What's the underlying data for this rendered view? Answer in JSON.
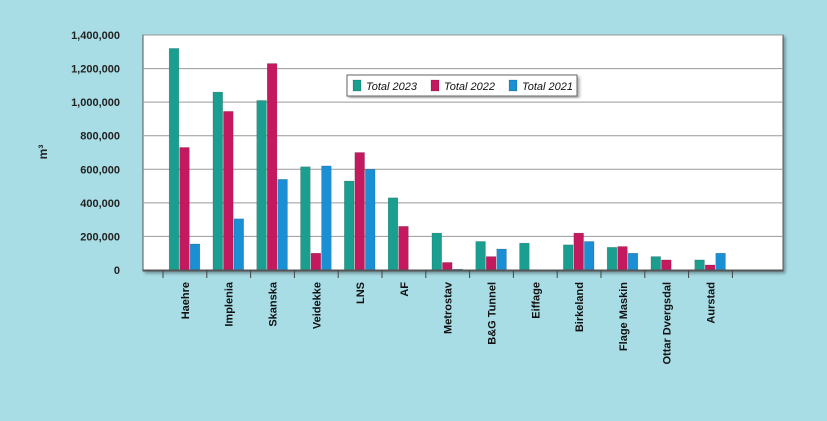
{
  "chart_data": {
    "type": "bar",
    "title": "",
    "xlabel": "",
    "ylabel": "m³",
    "ylim": [
      0,
      1400000
    ],
    "yticks": [
      0,
      200000,
      400000,
      600000,
      800000,
      1000000,
      1200000,
      1400000
    ],
    "ytick_labels": [
      "0",
      "200,000",
      "400,000",
      "600,000",
      "800,000",
      "1,000,000",
      "1,200,000",
      "1,400,000"
    ],
    "grid": true,
    "legend_position": "top-center",
    "categories": [
      "Haehre",
      "Implenia",
      "Skanska",
      "Veidekke",
      "LNS",
      "AF",
      "Metrostav",
      "B&G Tunnel",
      "Eiffage",
      "Birkeland",
      "Flage Maskin",
      "Ottar Dvergsdal",
      "Aurstad"
    ],
    "series": [
      {
        "name": "Total 2023",
        "color": "#1a9e8f",
        "values": [
          1320000,
          1060000,
          1010000,
          615000,
          530000,
          430000,
          220000,
          170000,
          160000,
          150000,
          135000,
          80000,
          60000
        ]
      },
      {
        "name": "Total 2022",
        "color": "#c4185f",
        "values": [
          730000,
          945000,
          1230000,
          100000,
          700000,
          260000,
          45000,
          80000,
          0,
          220000,
          140000,
          60000,
          30000
        ]
      },
      {
        "name": "Total 2021",
        "color": "#1b8fd3",
        "values": [
          155000,
          305000,
          540000,
          620000,
          600000,
          0,
          5000,
          125000,
          0,
          170000,
          100000,
          0,
          100000
        ]
      }
    ]
  }
}
